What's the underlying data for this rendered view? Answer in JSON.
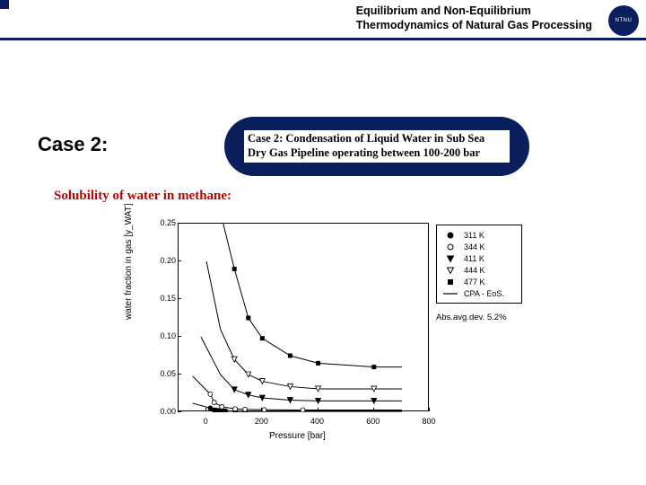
{
  "header": {
    "line1": "Equilibrium and Non-Equilibrium",
    "line2": "Thermodynamics of Natural Gas Processing",
    "logo_text": "NTNU"
  },
  "case_label": "Case 2:",
  "bubble": "Case 2: Condensation of Liquid Water in Sub Sea Dry Gas Pipeline operating between 100-200 bar",
  "subtitle": "Solubility of water in methane:",
  "chart": {
    "type": "scatter-line",
    "xlabel": "Pressure [bar]",
    "ylabel": "water fraction in gas [y_WAT]",
    "xlim": [
      -100,
      800
    ],
    "ylim": [
      0,
      0.25
    ],
    "xticks": [
      0,
      200,
      400,
      600,
      800
    ],
    "yticks": [
      0.0,
      0.05,
      0.1,
      0.15,
      0.2,
      0.25
    ],
    "background_color": "#ffffff",
    "axis_color": "#000000",
    "tick_fontsize": 9,
    "label_fontsize": 10,
    "legend": {
      "items": [
        {
          "label": "311 K",
          "marker": "filled-circle"
        },
        {
          "label": "344 K",
          "marker": "open-circle"
        },
        {
          "label": "411 K",
          "marker": "filled-down-triangle"
        },
        {
          "label": "444 K",
          "marker": "open-down-triangle"
        },
        {
          "label": "477 K",
          "marker": "filled-square"
        },
        {
          "label": "CPA - EoS.",
          "marker": "line"
        }
      ],
      "fontsize": 9
    },
    "deviation_text": "Abs.avg.dev. 5.2%",
    "series": [
      {
        "temp": "311 K",
        "marker": "filled-circle",
        "color": "#000000",
        "x": [
          13.8,
          27.6,
          34.5,
          41.4,
          48.3,
          55.2,
          62.1,
          68.9,
          103,
          138
        ],
        "y": [
          0.0055,
          0.003,
          0.0025,
          0.0022,
          0.0019,
          0.0017,
          0.0016,
          0.0015,
          0.0012,
          0.0011
        ]
      },
      {
        "temp": "344 K",
        "marker": "open-circle",
        "color": "#000000",
        "x": [
          13.8,
          27.6,
          55.2,
          103,
          138,
          207,
          345
        ],
        "y": [
          0.024,
          0.013,
          0.0072,
          0.0045,
          0.0038,
          0.0032,
          0.003
        ]
      },
      {
        "temp": "411 K",
        "marker": "filled-down-triangle",
        "color": "#000000",
        "x": [
          100,
          150,
          200,
          300,
          400,
          600
        ],
        "y": [
          0.03,
          0.023,
          0.019,
          0.016,
          0.015,
          0.015
        ]
      },
      {
        "temp": "444 K",
        "marker": "open-down-triangle",
        "color": "#000000",
        "x": [
          100,
          150,
          200,
          300,
          400,
          600
        ],
        "y": [
          0.07,
          0.05,
          0.041,
          0.034,
          0.031,
          0.031
        ]
      },
      {
        "temp": "477 K",
        "marker": "filled-square",
        "color": "#000000",
        "x": [
          100,
          150,
          200,
          300,
          400,
          600
        ],
        "y": [
          0.19,
          0.125,
          0.098,
          0.075,
          0.065,
          0.06
        ]
      }
    ],
    "model_lines": [
      {
        "x": [
          -50,
          13.8,
          27.6,
          55.2,
          103,
          138,
          207,
          345,
          700
        ],
        "y": [
          0.012,
          0.0055,
          0.003,
          0.0017,
          0.0012,
          0.0011,
          0.001,
          0.001,
          0.001
        ]
      },
      {
        "x": [
          -50,
          13.8,
          27.6,
          55.2,
          103,
          138,
          207,
          345,
          700
        ],
        "y": [
          0.048,
          0.024,
          0.013,
          0.0072,
          0.0045,
          0.0038,
          0.0032,
          0.003,
          0.003
        ]
      },
      {
        "x": [
          -20,
          50,
          100,
          150,
          200,
          300,
          400,
          600,
          700
        ],
        "y": [
          0.1,
          0.05,
          0.03,
          0.023,
          0.019,
          0.016,
          0.015,
          0.015,
          0.015
        ]
      },
      {
        "x": [
          0,
          50,
          100,
          150,
          200,
          300,
          400,
          600,
          700
        ],
        "y": [
          0.2,
          0.11,
          0.07,
          0.05,
          0.041,
          0.034,
          0.031,
          0.031,
          0.031
        ]
      },
      {
        "x": [
          60,
          100,
          150,
          200,
          300,
          400,
          600,
          700
        ],
        "y": [
          0.25,
          0.19,
          0.125,
          0.098,
          0.075,
          0.065,
          0.06,
          0.06
        ]
      }
    ],
    "line_color": "#000000",
    "line_width": 1,
    "marker_size": 4
  },
  "colors": {
    "brand": "#0a1f5c",
    "accent": "#c00000"
  }
}
